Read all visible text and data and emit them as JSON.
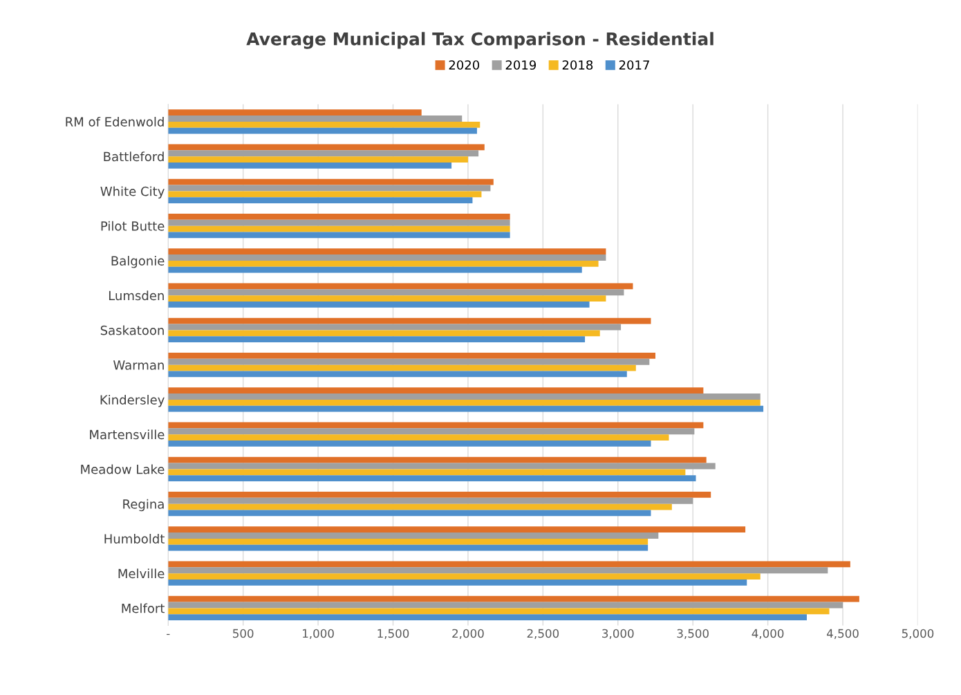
{
  "chart_data": {
    "type": "bar",
    "orientation": "horizontal",
    "title": "Average Municipal Tax Comparison - Residential",
    "categories": [
      "RM of Edenwold",
      "Battleford",
      "White City",
      "Pilot Butte",
      "Balgonie",
      "Lumsden",
      "Saskatoon",
      "Warman",
      "Kindersley",
      "Martensville",
      "Meadow Lake",
      "Regina",
      "Humboldt",
      "Melville",
      "Melfort"
    ],
    "series": [
      {
        "name": "2020",
        "color": "#e07028",
        "values": [
          1690,
          2110,
          2170,
          2280,
          2920,
          3100,
          3220,
          3250,
          3570,
          3570,
          3590,
          3620,
          3850,
          4550,
          4610
        ]
      },
      {
        "name": "2019",
        "color": "#a0a0a0",
        "values": [
          1960,
          2070,
          2150,
          2280,
          2920,
          3040,
          3020,
          3210,
          3950,
          3510,
          3650,
          3500,
          3270,
          4400,
          4500
        ]
      },
      {
        "name": "2018",
        "color": "#f5b922",
        "values": [
          2080,
          2000,
          2090,
          2280,
          2870,
          2920,
          2880,
          3120,
          3950,
          3340,
          3450,
          3360,
          3200,
          3950,
          4410
        ]
      },
      {
        "name": "2017",
        "color": "#4e8fcc",
        "values": [
          2060,
          1890,
          2030,
          2280,
          2760,
          2810,
          2780,
          3060,
          3970,
          3220,
          3520,
          3220,
          3200,
          3860,
          4260
        ]
      }
    ],
    "xlim": [
      0,
      5000
    ],
    "xticks": [
      {
        "value": 0,
        "label": "-"
      },
      {
        "value": 500,
        "label": "500"
      },
      {
        "value": 1000,
        "label": "1,000"
      },
      {
        "value": 1500,
        "label": "1,500"
      },
      {
        "value": 2000,
        "label": "2,000"
      },
      {
        "value": 2500,
        "label": "2,500"
      },
      {
        "value": 3000,
        "label": "3,000"
      },
      {
        "value": 3500,
        "label": "3,500"
      },
      {
        "value": 4000,
        "label": "4,000"
      },
      {
        "value": 4500,
        "label": "4,500"
      },
      {
        "value": 5000,
        "label": "5,000"
      }
    ],
    "grid": "x",
    "legend": "top"
  }
}
